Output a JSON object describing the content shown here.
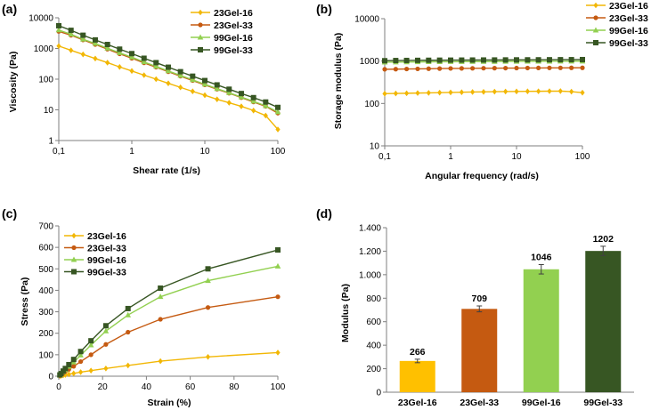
{
  "chart_data": [
    {
      "panel_label": "(a)",
      "type": "line",
      "xscale": "log",
      "yscale": "log",
      "xlabel": "Shear rate (1/s)",
      "ylabel": "Viscosity (Pa)",
      "xlim": [
        0.1,
        100
      ],
      "ylim": [
        1,
        10000
      ],
      "xticks": [
        0.1,
        1,
        10,
        100
      ],
      "xtick_labels": [
        "0,1",
        "1",
        "10",
        "100"
      ],
      "yticks": [
        1,
        10,
        100,
        1000,
        10000
      ],
      "ytick_labels": [
        "1",
        "10",
        "100",
        "1000",
        "10000"
      ],
      "legend": "top-right",
      "series": [
        {
          "name": "23Gel-16",
          "color": "#F2B705",
          "marker": "diamond",
          "x": [
            0.1,
            0.147,
            0.215,
            0.316,
            0.464,
            0.681,
            1,
            1.47,
            2.15,
            3.16,
            4.64,
            6.81,
            10,
            14.7,
            21.5,
            31.6,
            46.4,
            68.1,
            100
          ],
          "y": [
            1200,
            870,
            640,
            470,
            345,
            250,
            185,
            135,
            100,
            73,
            54,
            40,
            30,
            22,
            17,
            13,
            9.5,
            6.5,
            2.3
          ]
        },
        {
          "name": "23Gel-33",
          "color": "#C55A11",
          "marker": "circle",
          "x": [
            0.1,
            0.147,
            0.215,
            0.316,
            0.464,
            0.681,
            1,
            1.47,
            2.15,
            3.16,
            4.64,
            6.81,
            10,
            14.7,
            21.5,
            31.6,
            46.4,
            68.1,
            100
          ],
          "y": [
            3600,
            2700,
            1900,
            1350,
            950,
            670,
            480,
            340,
            245,
            175,
            125,
            90,
            65,
            47,
            35,
            25,
            18,
            13,
            7.8
          ]
        },
        {
          "name": "99Gel-16",
          "color": "#92D050",
          "marker": "triangle",
          "x": [
            0.1,
            0.147,
            0.215,
            0.316,
            0.464,
            0.681,
            1,
            1.47,
            2.15,
            3.16,
            4.64,
            6.81,
            10,
            14.7,
            21.5,
            31.6,
            46.4,
            68.1,
            100
          ],
          "y": [
            4000,
            2900,
            2000,
            1450,
            1020,
            720,
            520,
            365,
            260,
            185,
            132,
            95,
            68,
            49,
            36,
            26,
            19,
            13.5,
            8.5
          ]
        },
        {
          "name": "99Gel-33",
          "color": "#375623",
          "marker": "square",
          "x": [
            0.1,
            0.147,
            0.215,
            0.316,
            0.464,
            0.681,
            1,
            1.47,
            2.15,
            3.16,
            4.64,
            6.81,
            10,
            14.7,
            21.5,
            31.6,
            46.4,
            68.1,
            100
          ],
          "y": [
            5500,
            3900,
            2700,
            1900,
            1350,
            950,
            680,
            480,
            345,
            245,
            175,
            125,
            90,
            65,
            47,
            34,
            25,
            18,
            12
          ]
        }
      ]
    },
    {
      "panel_label": "(b)",
      "type": "line",
      "xscale": "log",
      "yscale": "log",
      "xlabel": "Angular frequency (rad/s)",
      "ylabel": "Storage modulus (Pa)",
      "xlim": [
        0.1,
        100
      ],
      "ylim": [
        10,
        10000
      ],
      "xticks": [
        0.1,
        1,
        10,
        100
      ],
      "xtick_labels": [
        "0,1",
        "1",
        "10",
        "100"
      ],
      "yticks": [
        10,
        100,
        1000,
        10000
      ],
      "ytick_labels": [
        "10",
        "100",
        "1000",
        "10000"
      ],
      "legend": "right",
      "series": [
        {
          "name": "23Gel-16",
          "color": "#F2B705",
          "marker": "diamond",
          "x": [
            0.1,
            0.147,
            0.215,
            0.316,
            0.464,
            0.681,
            1,
            1.47,
            2.15,
            3.16,
            4.64,
            6.81,
            10,
            14.7,
            21.5,
            31.6,
            46.4,
            68.1,
            100
          ],
          "y": [
            170,
            172,
            174,
            176,
            178,
            180,
            182,
            184,
            186,
            188,
            190,
            191,
            192,
            193,
            194,
            195,
            196,
            190,
            180
          ]
        },
        {
          "name": "23Gel-33",
          "color": "#C55A11",
          "marker": "circle",
          "x": [
            0.1,
            0.147,
            0.215,
            0.316,
            0.464,
            0.681,
            1,
            1.47,
            2.15,
            3.16,
            4.64,
            6.81,
            10,
            14.7,
            21.5,
            31.6,
            46.4,
            68.1,
            100
          ],
          "y": [
            640,
            645,
            650,
            655,
            660,
            665,
            670,
            672,
            675,
            678,
            680,
            682,
            684,
            686,
            688,
            690,
            692,
            693,
            694
          ]
        },
        {
          "name": "99Gel-16",
          "color": "#92D050",
          "marker": "triangle",
          "x": [
            0.1,
            0.147,
            0.215,
            0.316,
            0.464,
            0.681,
            1,
            1.47,
            2.15,
            3.16,
            4.64,
            6.81,
            10,
            14.7,
            21.5,
            31.6,
            46.4,
            68.1,
            100
          ],
          "y": [
            940,
            945,
            950,
            955,
            960,
            962,
            965,
            968,
            970,
            972,
            975,
            978,
            980,
            982,
            984,
            986,
            988,
            990,
            992
          ]
        },
        {
          "name": "99Gel-33",
          "color": "#375623",
          "marker": "square",
          "x": [
            0.1,
            0.147,
            0.215,
            0.316,
            0.464,
            0.681,
            1,
            1.47,
            2.15,
            3.16,
            4.64,
            6.81,
            10,
            14.7,
            21.5,
            31.6,
            46.4,
            68.1,
            100
          ],
          "y": [
            1020,
            1030,
            1035,
            1040,
            1045,
            1050,
            1052,
            1055,
            1058,
            1060,
            1062,
            1065,
            1068,
            1070,
            1072,
            1075,
            1078,
            1080,
            1085
          ]
        }
      ]
    },
    {
      "panel_label": "(c)",
      "type": "line",
      "xscale": "linear",
      "yscale": "linear",
      "xlabel": "Strain (%)",
      "ylabel": "Stress (Pa)",
      "xlim": [
        0,
        100
      ],
      "ylim": [
        0,
        700
      ],
      "xticks": [
        0,
        20,
        40,
        60,
        80,
        100
      ],
      "xtick_labels": [
        "0",
        "20",
        "40",
        "60",
        "80",
        "100"
      ],
      "yticks": [
        0,
        100,
        200,
        300,
        400,
        500,
        600,
        700
      ],
      "ytick_labels": [
        "0",
        "100",
        "200",
        "300",
        "400",
        "500",
        "600",
        "700"
      ],
      "legend": "top-left",
      "series": [
        {
          "name": "23Gel-16",
          "color": "#F2B705",
          "marker": "diamond",
          "x": [
            0.5,
            1,
            2,
            3,
            4.6,
            6.8,
            10,
            14.7,
            21.5,
            31.6,
            46.4,
            68.1,
            100
          ],
          "y": [
            1,
            2,
            4,
            6,
            9,
            13,
            19,
            26,
            36,
            50,
            70,
            90,
            110
          ]
        },
        {
          "name": "23Gel-33",
          "color": "#C55A11",
          "marker": "circle",
          "x": [
            0.5,
            1,
            2,
            3,
            4.6,
            6.8,
            10,
            14.7,
            21.5,
            31.6,
            46.4,
            68.1,
            100
          ],
          "y": [
            3,
            7,
            14,
            22,
            32,
            46,
            68,
            100,
            148,
            205,
            265,
            320,
            370
          ]
        },
        {
          "name": "99Gel-16",
          "color": "#92D050",
          "marker": "triangle",
          "x": [
            0.5,
            1,
            2,
            3,
            4.6,
            6.8,
            10,
            14.7,
            21.5,
            31.6,
            46.4,
            68.1,
            100
          ],
          "y": [
            5,
            10,
            20,
            30,
            45,
            65,
            98,
            145,
            210,
            285,
            370,
            445,
            512
          ]
        },
        {
          "name": "99Gel-33",
          "color": "#375623",
          "marker": "square",
          "x": [
            0.5,
            1,
            2,
            3,
            4.6,
            6.8,
            10,
            14.7,
            21.5,
            31.6,
            46.4,
            68.1,
            100
          ],
          "y": [
            6,
            12,
            24,
            36,
            54,
            78,
            115,
            165,
            235,
            315,
            410,
            500,
            588
          ]
        }
      ]
    },
    {
      "panel_label": "(d)",
      "type": "bar",
      "xlabel": "",
      "ylabel": "Modulus (Pa)",
      "ylim": [
        0,
        1400
      ],
      "yticks": [
        0,
        200,
        400,
        600,
        800,
        1000,
        1200,
        1400
      ],
      "ytick_labels": [
        "0",
        "200",
        "400",
        "600",
        "800",
        "1.000",
        "1.200",
        "1.400"
      ],
      "categories": [
        "23Gel-16",
        "23Gel-33",
        "99Gel-16",
        "99Gel-33"
      ],
      "values": [
        266,
        709,
        1046,
        1202
      ],
      "value_labels": [
        "266",
        "709",
        "1046",
        "1202"
      ],
      "errors": [
        15,
        25,
        40,
        40
      ],
      "colors": [
        "#FFC000",
        "#C55A11",
        "#92D050",
        "#375623"
      ]
    }
  ]
}
